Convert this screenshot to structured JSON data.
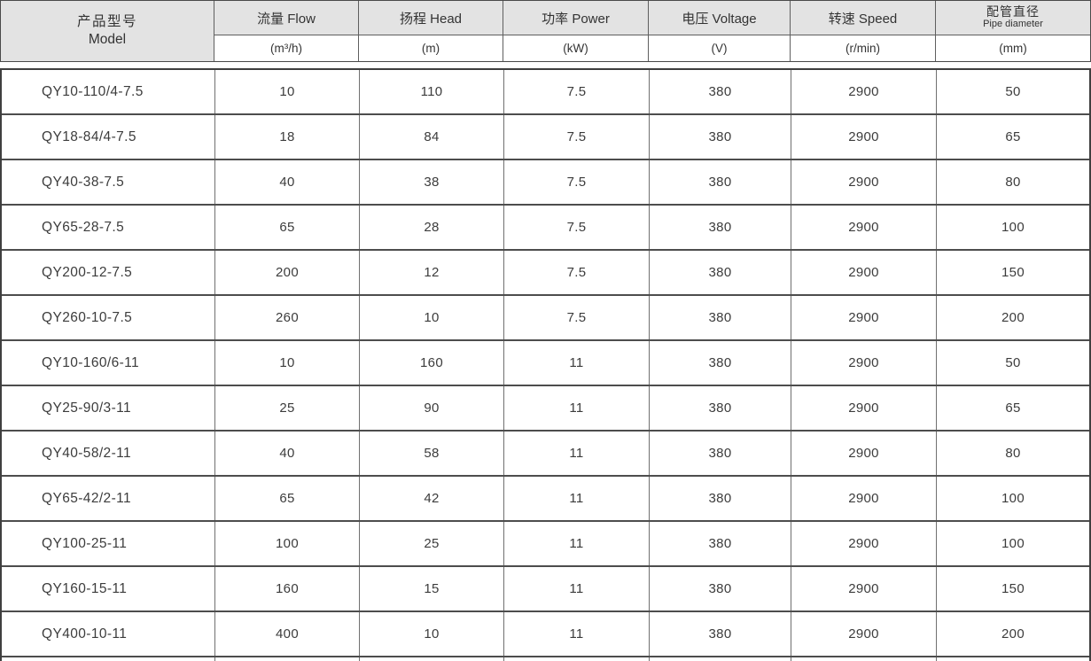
{
  "page": {
    "background_color": "#ffffff",
    "header_fill_color": "#e3e3e3",
    "outer_border_color": "#3f3f3f",
    "grid_line_color": "#707070",
    "text_color": "#3c3c3c"
  },
  "table": {
    "header": {
      "model_zh": "产品型号",
      "model_en": "Model",
      "columns": [
        {
          "label": "流量 Flow",
          "unit": "(m³/h)"
        },
        {
          "label": "扬程 Head",
          "unit": "(m)"
        },
        {
          "label": "功率 Power",
          "unit": "(kW)"
        },
        {
          "label": "电压 Voltage",
          "unit": "(V)"
        },
        {
          "label": "转速 Speed",
          "unit": "(r/min)"
        },
        {
          "label": "配管直径",
          "label2": "Pipe diameter",
          "unit": "(mm)"
        }
      ]
    },
    "rows": [
      [
        "QY10-110/4-7.5",
        "10",
        "110",
        "7.5",
        "380",
        "2900",
        "50"
      ],
      [
        "QY18-84/4-7.5",
        "18",
        "84",
        "7.5",
        "380",
        "2900",
        "65"
      ],
      [
        "QY40-38-7.5",
        "40",
        "38",
        "7.5",
        "380",
        "2900",
        "80"
      ],
      [
        "QY65-28-7.5",
        "65",
        "28",
        "7.5",
        "380",
        "2900",
        "100"
      ],
      [
        "QY200-12-7.5",
        "200",
        "12",
        "7.5",
        "380",
        "2900",
        "150"
      ],
      [
        "QY260-10-7.5",
        "260",
        "10",
        "7.5",
        "380",
        "2900",
        "200"
      ],
      [
        "QY10-160/6-11",
        "10",
        "160",
        "11",
        "380",
        "2900",
        "50"
      ],
      [
        "QY25-90/3-11",
        "25",
        "90",
        "11",
        "380",
        "2900",
        "65"
      ],
      [
        "QY40-58/2-11",
        "40",
        "58",
        "11",
        "380",
        "2900",
        "80"
      ],
      [
        "QY65-42/2-11",
        "65",
        "42",
        "11",
        "380",
        "2900",
        "100"
      ],
      [
        "QY100-25-11",
        "100",
        "25",
        "11",
        "380",
        "2900",
        "100"
      ],
      [
        "QY160-15-11",
        "160",
        "15",
        "11",
        "380",
        "2900",
        "150"
      ],
      [
        "QY400-10-11",
        "400",
        "10",
        "11",
        "380",
        "2900",
        "200"
      ]
    ]
  }
}
